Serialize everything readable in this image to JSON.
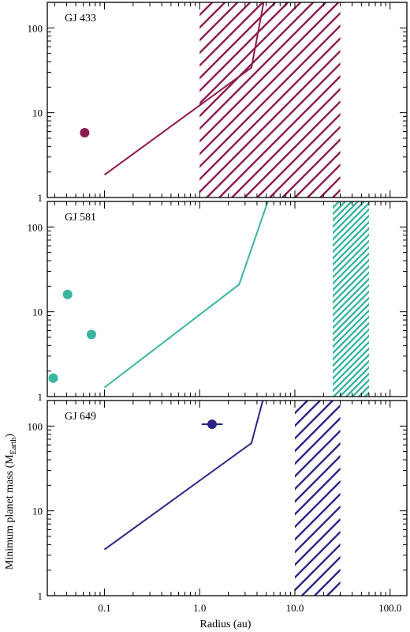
{
  "chart_data": [
    {
      "type": "line",
      "label": "GJ 433",
      "color": "#8c1a52",
      "x_scale": "log",
      "y_scale": "log",
      "xlim": [
        0.1,
        150
      ],
      "ylim": [
        1,
        200
      ],
      "limit_curve": [
        [
          0.1,
          1.85
        ],
        [
          3.5,
          34
        ],
        [
          4.7,
          200
        ]
      ],
      "planets": [
        {
          "x": 0.062,
          "y": 5.8,
          "xerr": null
        }
      ],
      "hatched_region": {
        "x0": 1.0,
        "x1": 30.0,
        "spacing": "wide"
      }
    },
    {
      "type": "line",
      "label": "GJ 581",
      "color": "#3ab5a0",
      "x_scale": "log",
      "y_scale": "log",
      "xlim": [
        0.1,
        150
      ],
      "ylim": [
        1,
        200
      ],
      "limit_curve": [
        [
          0.1,
          1.28
        ],
        [
          2.6,
          21
        ],
        [
          5.2,
          200
        ]
      ],
      "planets": [
        {
          "x": 0.029,
          "y": 1.65,
          "xerr": null
        },
        {
          "x": 0.041,
          "y": 16,
          "xerr": null
        },
        {
          "x": 0.073,
          "y": 5.4,
          "xerr": null
        }
      ],
      "hatched_region": {
        "x0": 25.0,
        "x1": 60.0,
        "spacing": "dense"
      }
    },
    {
      "type": "line",
      "label": "GJ 649",
      "color": "#2a2585",
      "x_scale": "log",
      "y_scale": "log",
      "xlim": [
        0.1,
        150
      ],
      "ylim": [
        1,
        200
      ],
      "limit_curve": [
        [
          0.1,
          3.5
        ],
        [
          3.5,
          63
        ],
        [
          4.6,
          200
        ]
      ],
      "planets": [
        {
          "x": 1.35,
          "y": 105,
          "xerr": [
            1.05,
            1.75
          ]
        }
      ],
      "hatched_region": {
        "x0": 10.0,
        "x1": 30.0,
        "spacing": "wide"
      }
    }
  ],
  "axes": {
    "xlabel": "Radius (au)",
    "ylabel_main": "Minimum planet mass (M",
    "ylabel_sub": "Earth",
    "ylabel_close": ")",
    "xtick_labels": [
      "0.1",
      "1.0",
      "10.0",
      "100.0"
    ],
    "xtick_values": [
      0.1,
      1,
      10,
      100
    ],
    "ytick_labels": [
      "1",
      "10",
      "100"
    ],
    "ytick_values": [
      1,
      10,
      100
    ]
  }
}
